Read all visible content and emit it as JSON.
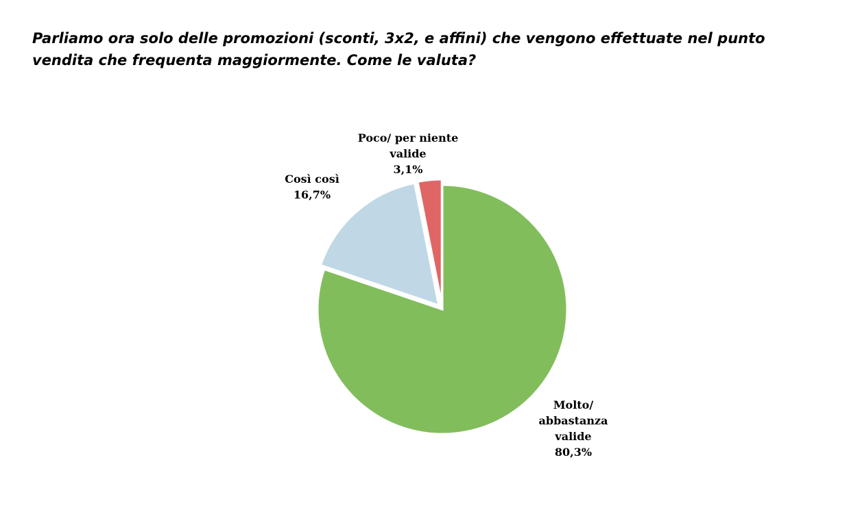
{
  "chart_data": {
    "type": "pie",
    "title": "Parliamo ora solo delle promozioni (sconti, 3x2, e affini) che vengono effettuate nel punto vendita che frequenta maggiormente. Come le valuta?",
    "categories": [
      "Molto/ abbastanza valide",
      "Così così",
      "Poco/ per niente valide"
    ],
    "values": [
      80.3,
      16.7,
      3.1
    ],
    "value_labels": [
      "80,3%",
      "16,7%",
      "3,1%"
    ],
    "colors": [
      "#82bd5c",
      "#c0d8e6",
      "#e06666"
    ]
  }
}
